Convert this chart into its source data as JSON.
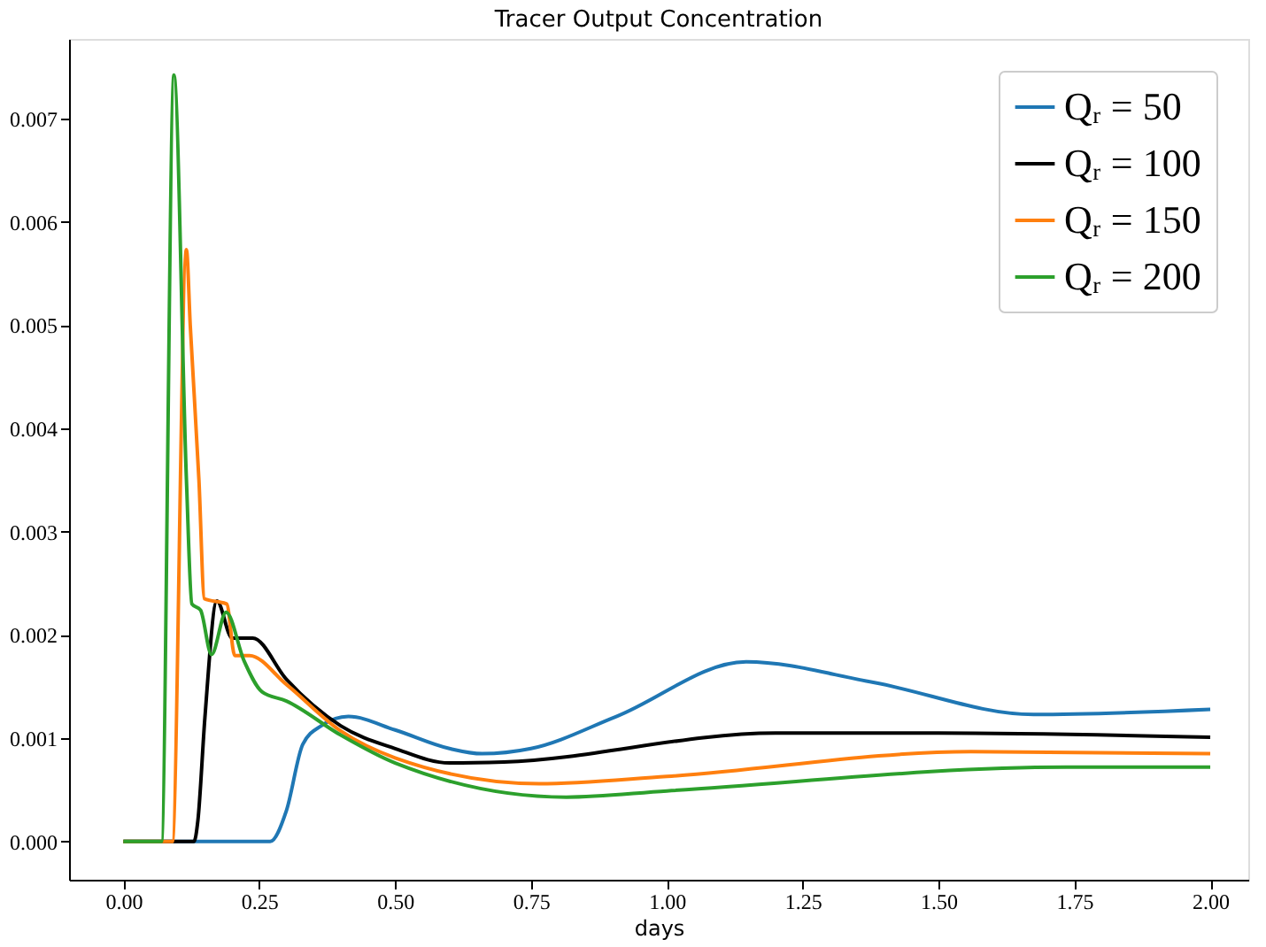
{
  "chart_data": {
    "type": "line",
    "title": "Tracer Output Concentration",
    "xlabel": "days",
    "xlim": [
      -0.1,
      2.07
    ],
    "ylim": [
      -0.00037,
      0.00777
    ],
    "xticks": [
      {
        "value": 0,
        "label": "0.00"
      },
      {
        "value": 0.25,
        "label": "0.25"
      },
      {
        "value": 0.5,
        "label": "0.50"
      },
      {
        "value": 0.75,
        "label": "0.75"
      },
      {
        "value": 1,
        "label": "1.00"
      },
      {
        "value": 1.25,
        "label": "1.25"
      },
      {
        "value": 1.5,
        "label": "1.50"
      },
      {
        "value": 1.75,
        "label": "1.75"
      },
      {
        "value": 2,
        "label": "2.00"
      }
    ],
    "yticks": [
      {
        "value": 0,
        "label": "0.000"
      },
      0.001,
      0.002,
      0.003,
      0.004,
      0.005,
      0.006,
      0.007
    ],
    "grid": false,
    "legend": "top right",
    "marker": "none",
    "line_style": "solid",
    "series": [
      {
        "name": "Qᵣ = 50",
        "color": "#1f77b4",
        "x": [
          0,
          0.2,
          0.27,
          0.3,
          0.33,
          0.364,
          0.414,
          0.5,
          0.6,
          0.66,
          0.75,
          0.907,
          1.146,
          1.38,
          1.675,
          2.0
        ],
        "values": [
          0,
          0,
          0,
          0.0003,
          0.00094,
          0.00112,
          0.00121,
          0.00108,
          0.0009,
          0.00085,
          0.0009,
          0.00121,
          0.00174,
          0.00154,
          0.00123,
          0.00128
        ]
      },
      {
        "name": "Qᵣ = 100",
        "color": "#000000",
        "x": [
          0,
          0.13,
          0.137,
          0.15,
          0.172,
          0.2,
          0.238,
          0.3,
          0.4,
          0.5,
          0.6,
          0.7,
          1.2,
          1.5,
          2.0
        ],
        "values": [
          0,
          0,
          0.0002,
          0.0012,
          0.00233,
          0.00197,
          0.00197,
          0.00157,
          0.00112,
          0.0009,
          0.00076,
          0.00077,
          0.00105,
          0.00105,
          0.00101
        ]
      },
      {
        "name": "Qᵣ = 150",
        "color": "#ff7f0e",
        "x": [
          0,
          0.09,
          0.116,
          0.123,
          0.139,
          0.149,
          0.19,
          0.205,
          0.232,
          0.3,
          0.4,
          0.5,
          0.765,
          1.0,
          1.56,
          2.0
        ],
        "values": [
          0,
          0,
          0.00573,
          0.005,
          0.0035,
          0.00235,
          0.0023,
          0.0018,
          0.0018,
          0.00152,
          0.00107,
          0.00081,
          0.00056,
          0.00063,
          0.00087,
          0.00085
        ]
      },
      {
        "name": "Qᵣ = 200",
        "color": "#2ca02c",
        "x": [
          0,
          0.07,
          0.093,
          0.116,
          0.126,
          0.142,
          0.162,
          0.189,
          0.222,
          0.255,
          0.3,
          0.4,
          0.5,
          0.815,
          1.0,
          1.735,
          2.0
        ],
        "values": [
          0,
          0,
          0.00742,
          0.0035,
          0.0023,
          0.00224,
          0.00181,
          0.00222,
          0.00175,
          0.00145,
          0.00136,
          0.00103,
          0.00076,
          0.00043,
          0.00049,
          0.00072,
          0.00072
        ]
      }
    ]
  }
}
